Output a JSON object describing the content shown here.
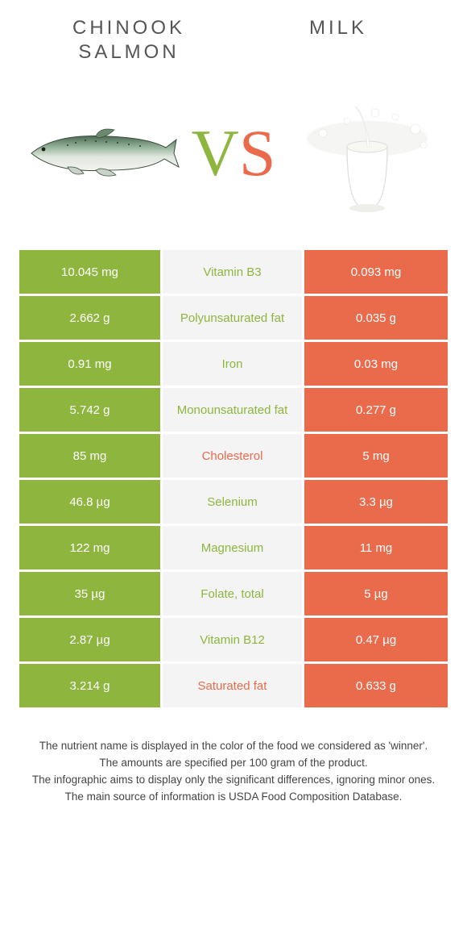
{
  "colors": {
    "left": "#8eb63f",
    "right": "#ea6b4c",
    "mid_bg": "#f4f4f4"
  },
  "header": {
    "left_title": "Chinook salmon",
    "right_title": "Milk"
  },
  "vs": {
    "v": "V",
    "s": "S"
  },
  "rows": [
    {
      "left": "10.045 mg",
      "label": "Vitamin B3",
      "right": "0.093 mg",
      "winner": "left"
    },
    {
      "left": "2.662 g",
      "label": "Polyunsaturated fat",
      "right": "0.035 g",
      "winner": "left"
    },
    {
      "left": "0.91 mg",
      "label": "Iron",
      "right": "0.03 mg",
      "winner": "left"
    },
    {
      "left": "5.742 g",
      "label": "Monounsaturated fat",
      "right": "0.277 g",
      "winner": "left"
    },
    {
      "left": "85 mg",
      "label": "Cholesterol",
      "right": "5 mg",
      "winner": "right"
    },
    {
      "left": "46.8 µg",
      "label": "Selenium",
      "right": "3.3 µg",
      "winner": "left"
    },
    {
      "left": "122 mg",
      "label": "Magnesium",
      "right": "11 mg",
      "winner": "left"
    },
    {
      "left": "35 µg",
      "label": "Folate, total",
      "right": "5 µg",
      "winner": "left"
    },
    {
      "left": "2.87 µg",
      "label": "Vitamin B12",
      "right": "0.47 µg",
      "winner": "left"
    },
    {
      "left": "3.214 g",
      "label": "Saturated fat",
      "right": "0.633 g",
      "winner": "right"
    }
  ],
  "footnotes": [
    "The nutrient name is displayed in the color of the food we considered as 'winner'.",
    "The amounts are specified per 100 gram of the product.",
    "The infographic aims to display only the significant differences, ignoring minor ones.",
    "The main source of information is USDA Food Composition Database."
  ]
}
